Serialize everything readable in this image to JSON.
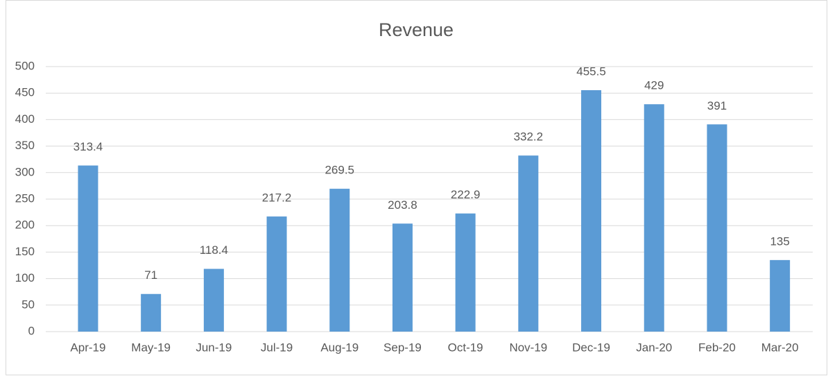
{
  "chart_data": {
    "type": "bar",
    "title": "Revenue",
    "categories": [
      "Apr-19",
      "May-19",
      "Jun-19",
      "Jul-19",
      "Aug-19",
      "Sep-19",
      "Oct-19",
      "Nov-19",
      "Dec-19",
      "Jan-20",
      "Feb-20",
      "Mar-20"
    ],
    "values": [
      313.4,
      71,
      118.4,
      217.2,
      269.5,
      203.8,
      222.9,
      332.2,
      455.5,
      429,
      391,
      135
    ],
    "color": "#5b9bd5",
    "ylim": [
      0,
      500
    ],
    "yticks": [
      0,
      50,
      100,
      150,
      200,
      250,
      300,
      350,
      400,
      450,
      500
    ],
    "grid": true
  }
}
